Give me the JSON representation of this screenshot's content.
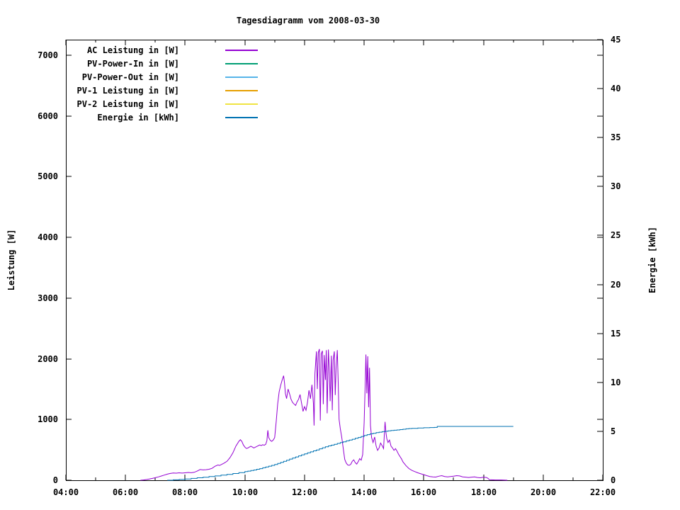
{
  "title": "Tagesdiagramm vom 2008-03-30",
  "axes": {
    "x": {
      "tick_labels": [
        "04:00",
        "06:00",
        "08:00",
        "10:00",
        "12:00",
        "14:00",
        "16:00",
        "18:00",
        "20:00",
        "22:00"
      ],
      "tick_hours": [
        4,
        6,
        8,
        10,
        12,
        14,
        16,
        18,
        20,
        22
      ],
      "minor_tick_hours": [
        5,
        7,
        9,
        11,
        13,
        15,
        17,
        19,
        21
      ],
      "range_hours": [
        4,
        22
      ]
    },
    "y_left": {
      "label": "Leistung [W]",
      "ticks": [
        0,
        1000,
        2000,
        3000,
        4000,
        5000,
        6000,
        7000
      ],
      "range": [
        0,
        7000
      ]
    },
    "y_right": {
      "label": "Energie [kWh]",
      "ticks": [
        0,
        5,
        10,
        15,
        20,
        25,
        30,
        35,
        40,
        45
      ],
      "range": [
        0,
        45
      ]
    }
  },
  "legend": [
    {
      "label": "AC Leistung in [W]",
      "color": "#9400d3"
    },
    {
      "label": "PV-Power-In in [W]",
      "color": "#009e73"
    },
    {
      "label": "PV-Power-Out in [W]",
      "color": "#56b4e9"
    },
    {
      "label": "PV-1 Leistung in [W]",
      "color": "#e69f00"
    },
    {
      "label": "PV-2 Leistung in [W]",
      "color": "#f0e442"
    },
    {
      "label": "Energie in [kWh]",
      "color": "#0072b2"
    }
  ],
  "chart_data": {
    "type": "line",
    "title": "Tagesdiagramm vom 2008-03-30",
    "xlabel": "",
    "ylabel": "Leistung [W]",
    "y2label": "Energie [kWh]",
    "x_unit": "time (HH:MM)",
    "xlim_hours": [
      4,
      22
    ],
    "ylim_left": [
      0,
      7000
    ],
    "ylim_right": [
      0,
      45
    ],
    "grid": false,
    "legend_position": "top-left-inside",
    "series": [
      {
        "name": "AC Leistung in [W]",
        "axis": "left",
        "color": "#9400d3",
        "render": "line",
        "points": [
          [
            6.5,
            0
          ],
          [
            6.6,
            5
          ],
          [
            6.7,
            12
          ],
          [
            6.8,
            20
          ],
          [
            6.9,
            30
          ],
          [
            7.0,
            42
          ],
          [
            7.1,
            55
          ],
          [
            7.2,
            70
          ],
          [
            7.3,
            85
          ],
          [
            7.4,
            100
          ],
          [
            7.5,
            112
          ],
          [
            7.6,
            120
          ],
          [
            7.7,
            117
          ],
          [
            7.8,
            123
          ],
          [
            7.9,
            118
          ],
          [
            8.0,
            123
          ],
          [
            8.1,
            128
          ],
          [
            8.2,
            124
          ],
          [
            8.3,
            131
          ],
          [
            8.4,
            150
          ],
          [
            8.5,
            176
          ],
          [
            8.6,
            170
          ],
          [
            8.7,
            174
          ],
          [
            8.8,
            181
          ],
          [
            8.9,
            196
          ],
          [
            9.0,
            231
          ],
          [
            9.1,
            252
          ],
          [
            9.15,
            244
          ],
          [
            9.2,
            256
          ],
          [
            9.3,
            281
          ],
          [
            9.4,
            312
          ],
          [
            9.5,
            371
          ],
          [
            9.6,
            452
          ],
          [
            9.7,
            562
          ],
          [
            9.8,
            641
          ],
          [
            9.85,
            667
          ],
          [
            9.9,
            638
          ],
          [
            9.95,
            581
          ],
          [
            10.0,
            546
          ],
          [
            10.05,
            524
          ],
          [
            10.1,
            531
          ],
          [
            10.15,
            546
          ],
          [
            10.2,
            561
          ],
          [
            10.25,
            547
          ],
          [
            10.3,
            532
          ],
          [
            10.4,
            556
          ],
          [
            10.5,
            581
          ],
          [
            10.55,
            571
          ],
          [
            10.6,
            586
          ],
          [
            10.65,
            576
          ],
          [
            10.7,
            591
          ],
          [
            10.74,
            652
          ],
          [
            10.77,
            822
          ],
          [
            10.8,
            702
          ],
          [
            10.85,
            657
          ],
          [
            10.9,
            641
          ],
          [
            10.95,
            662
          ],
          [
            11.0,
            704
          ],
          [
            11.05,
            961
          ],
          [
            11.1,
            1257
          ],
          [
            11.15,
            1456
          ],
          [
            11.2,
            1562
          ],
          [
            11.25,
            1648
          ],
          [
            11.3,
            1722
          ],
          [
            11.33,
            1601
          ],
          [
            11.36,
            1428
          ],
          [
            11.4,
            1345
          ],
          [
            11.45,
            1502
          ],
          [
            11.5,
            1423
          ],
          [
            11.55,
            1334
          ],
          [
            11.6,
            1282
          ],
          [
            11.65,
            1257
          ],
          [
            11.7,
            1232
          ],
          [
            11.75,
            1291
          ],
          [
            11.8,
            1334
          ],
          [
            11.85,
            1412
          ],
          [
            11.9,
            1272
          ],
          [
            11.95,
            1134
          ],
          [
            12.0,
            1212
          ],
          [
            12.05,
            1153
          ],
          [
            12.1,
            1283
          ],
          [
            12.15,
            1482
          ],
          [
            12.2,
            1343
          ],
          [
            12.25,
            1573
          ],
          [
            12.3,
            1262
          ],
          [
            12.32,
            902
          ],
          [
            12.35,
            1753
          ],
          [
            12.4,
            2122
          ],
          [
            12.43,
            1503
          ],
          [
            12.46,
            2102
          ],
          [
            12.5,
            2161
          ],
          [
            12.53,
            982
          ],
          [
            12.56,
            2083
          ],
          [
            12.6,
            2132
          ],
          [
            12.63,
            1253
          ],
          [
            12.66,
            2062
          ],
          [
            12.7,
            1652
          ],
          [
            12.73,
            2142
          ],
          [
            12.76,
            1102
          ],
          [
            12.8,
            2152
          ],
          [
            12.83,
            1853
          ],
          [
            12.86,
            1303
          ],
          [
            12.9,
            2052
          ],
          [
            12.93,
            1153
          ],
          [
            12.96,
            1982
          ],
          [
            13.0,
            2122
          ],
          [
            13.03,
            1403
          ],
          [
            13.06,
            1853
          ],
          [
            13.1,
            2143
          ],
          [
            13.13,
            1603
          ],
          [
            13.16,
            1003
          ],
          [
            13.2,
            852
          ],
          [
            13.25,
            703
          ],
          [
            13.3,
            523
          ],
          [
            13.35,
            343
          ],
          [
            13.4,
            283
          ],
          [
            13.45,
            252
          ],
          [
            13.5,
            246
          ],
          [
            13.55,
            262
          ],
          [
            13.6,
            312
          ],
          [
            13.65,
            336
          ],
          [
            13.7,
            291
          ],
          [
            13.75,
            266
          ],
          [
            13.8,
            306
          ],
          [
            13.85,
            356
          ],
          [
            13.9,
            331
          ],
          [
            13.95,
            421
          ],
          [
            14.0,
            952
          ],
          [
            14.03,
            1503
          ],
          [
            14.06,
            2071
          ],
          [
            14.09,
            1432
          ],
          [
            14.12,
            2042
          ],
          [
            14.15,
            1203
          ],
          [
            14.18,
            1852
          ],
          [
            14.21,
            903
          ],
          [
            14.25,
            703
          ],
          [
            14.3,
            622
          ],
          [
            14.35,
            712
          ],
          [
            14.4,
            562
          ],
          [
            14.45,
            492
          ],
          [
            14.5,
            532
          ],
          [
            14.55,
            612
          ],
          [
            14.6,
            572
          ],
          [
            14.65,
            522
          ],
          [
            14.7,
            962
          ],
          [
            14.73,
            782
          ],
          [
            14.76,
            682
          ],
          [
            14.8,
            622
          ],
          [
            14.85,
            662
          ],
          [
            14.9,
            562
          ],
          [
            14.95,
            532
          ],
          [
            15.0,
            492
          ],
          [
            15.05,
            522
          ],
          [
            15.1,
            482
          ],
          [
            15.15,
            432
          ],
          [
            15.2,
            392
          ],
          [
            15.25,
            352
          ],
          [
            15.3,
            302
          ],
          [
            15.4,
            242
          ],
          [
            15.5,
            192
          ],
          [
            15.6,
            162
          ],
          [
            15.7,
            142
          ],
          [
            15.8,
            122
          ],
          [
            15.9,
            106
          ],
          [
            16.0,
            92
          ],
          [
            16.1,
            76
          ],
          [
            16.2,
            62
          ],
          [
            16.3,
            56
          ],
          [
            16.4,
            52
          ],
          [
            16.5,
            66
          ],
          [
            16.6,
            76
          ],
          [
            16.7,
            62
          ],
          [
            16.8,
            56
          ],
          [
            16.9,
            62
          ],
          [
            17.0,
            66
          ],
          [
            17.1,
            76
          ],
          [
            17.2,
            71
          ],
          [
            17.3,
            56
          ],
          [
            17.4,
            51
          ],
          [
            17.5,
            46
          ],
          [
            17.6,
            51
          ],
          [
            17.7,
            56
          ],
          [
            17.8,
            46
          ],
          [
            17.9,
            41
          ],
          [
            18.0,
            51
          ],
          [
            18.1,
            46
          ],
          [
            18.15,
            31
          ],
          [
            18.2,
            8
          ],
          [
            18.4,
            5
          ],
          [
            18.6,
            5
          ],
          [
            18.8,
            0
          ]
        ]
      },
      {
        "name": "Energie in [kWh]",
        "axis": "right",
        "color": "#0072b2",
        "render": "steps",
        "points": [
          [
            7.4,
            0.0
          ],
          [
            7.6,
            0.04
          ],
          [
            7.8,
            0.08
          ],
          [
            8.0,
            0.13
          ],
          [
            8.2,
            0.19
          ],
          [
            8.4,
            0.25
          ],
          [
            8.6,
            0.31
          ],
          [
            8.8,
            0.38
          ],
          [
            9.0,
            0.44
          ],
          [
            9.2,
            0.52
          ],
          [
            9.4,
            0.6
          ],
          [
            9.6,
            0.69
          ],
          [
            9.8,
            0.78
          ],
          [
            10.0,
            0.88
          ],
          [
            10.1,
            0.93
          ],
          [
            10.2,
            0.99
          ],
          [
            10.3,
            1.05
          ],
          [
            10.4,
            1.12
          ],
          [
            10.5,
            1.19
          ],
          [
            10.6,
            1.27
          ],
          [
            10.7,
            1.35
          ],
          [
            10.8,
            1.44
          ],
          [
            10.9,
            1.52
          ],
          [
            11.0,
            1.61
          ],
          [
            11.1,
            1.72
          ],
          [
            11.2,
            1.83
          ],
          [
            11.3,
            1.94
          ],
          [
            11.4,
            2.05
          ],
          [
            11.5,
            2.16
          ],
          [
            11.6,
            2.27
          ],
          [
            11.7,
            2.38
          ],
          [
            11.8,
            2.49
          ],
          [
            11.9,
            2.6
          ],
          [
            12.0,
            2.7
          ],
          [
            12.1,
            2.8
          ],
          [
            12.2,
            2.9
          ],
          [
            12.3,
            3.0
          ],
          [
            12.4,
            3.1
          ],
          [
            12.5,
            3.21
          ],
          [
            12.6,
            3.32
          ],
          [
            12.7,
            3.42
          ],
          [
            12.8,
            3.51
          ],
          [
            12.9,
            3.59
          ],
          [
            13.0,
            3.67
          ],
          [
            13.1,
            3.76
          ],
          [
            13.2,
            3.85
          ],
          [
            13.3,
            3.93
          ],
          [
            13.4,
            4.02
          ],
          [
            13.5,
            4.1
          ],
          [
            13.6,
            4.19
          ],
          [
            13.7,
            4.28
          ],
          [
            13.8,
            4.37
          ],
          [
            13.9,
            4.47
          ],
          [
            14.0,
            4.57
          ],
          [
            14.1,
            4.66
          ],
          [
            14.2,
            4.74
          ],
          [
            14.3,
            4.8
          ],
          [
            14.4,
            4.86
          ],
          [
            14.5,
            4.91
          ],
          [
            14.6,
            4.96
          ],
          [
            14.7,
            5.0
          ],
          [
            14.8,
            5.04
          ],
          [
            14.9,
            5.08
          ],
          [
            15.0,
            5.11
          ],
          [
            15.1,
            5.14
          ],
          [
            15.2,
            5.17
          ],
          [
            15.3,
            5.21
          ],
          [
            15.4,
            5.25
          ],
          [
            15.5,
            5.28
          ],
          [
            15.6,
            5.3
          ],
          [
            15.8,
            5.33
          ],
          [
            16.0,
            5.36
          ],
          [
            16.2,
            5.38
          ],
          [
            16.35,
            5.4
          ],
          [
            16.45,
            5.5
          ],
          [
            17.0,
            5.5
          ],
          [
            17.5,
            5.5
          ],
          [
            18.0,
            5.5
          ],
          [
            18.5,
            5.5
          ],
          [
            19.0,
            5.5
          ]
        ]
      }
    ]
  }
}
